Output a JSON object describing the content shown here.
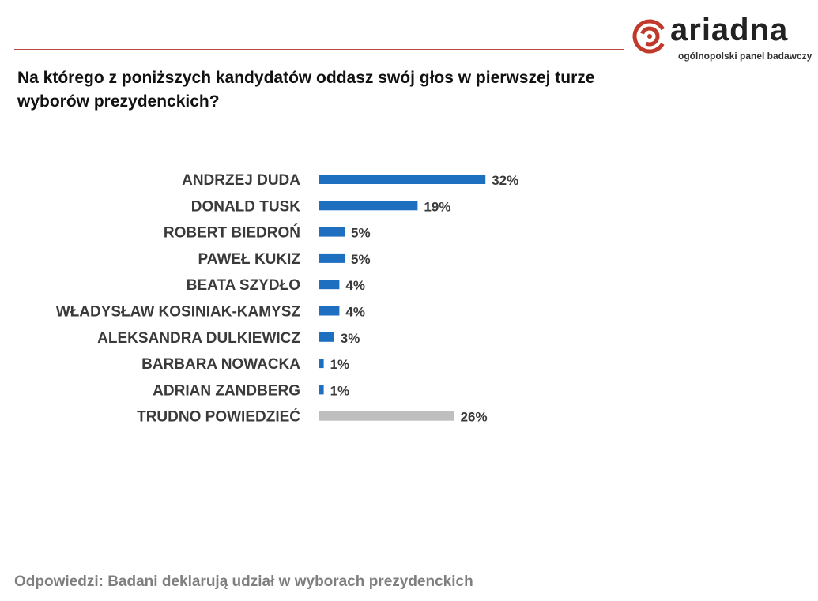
{
  "brand": {
    "name": "ariadna",
    "tagline": "ogólnopolski panel badawczy",
    "accent_color": "#c0392b",
    "rule_color": "#b64b46"
  },
  "question": "Na którego z poniższych kandydatów oddasz swój głos w pierwszej turze wyborów prezydenckich?",
  "footnote": "Odpowiedzi: Badani deklarują udział w wyborach prezydenckich",
  "chart_data": {
    "type": "bar",
    "orientation": "horizontal",
    "categories": [
      "ANDRZEJ DUDA",
      "DONALD TUSK",
      "ROBERT BIEDROŃ",
      "PAWEŁ KUKIZ",
      "BEATA SZYDŁO",
      "WŁADYSŁAW KOSINIAK-KAMYSZ",
      "ALEKSANDRA DULKIEWICZ",
      "BARBARA NOWACKA",
      "ADRIAN ZANDBERG",
      "TRUDNO POWIEDZIEĆ"
    ],
    "values": [
      32,
      19,
      5,
      5,
      4,
      4,
      3,
      1,
      1,
      26
    ],
    "value_labels": [
      "32%",
      "19%",
      "5%",
      "5%",
      "4%",
      "4%",
      "3%",
      "1%",
      "1%",
      "26%"
    ],
    "colors": [
      "#1f6fc0",
      "#1f6fc0",
      "#1f6fc0",
      "#1f6fc0",
      "#1f6fc0",
      "#1f6fc0",
      "#1f6fc0",
      "#1f6fc0",
      "#1f6fc0",
      "#bfbfbf"
    ],
    "unit": "%",
    "grid": false,
    "legend": "none"
  }
}
